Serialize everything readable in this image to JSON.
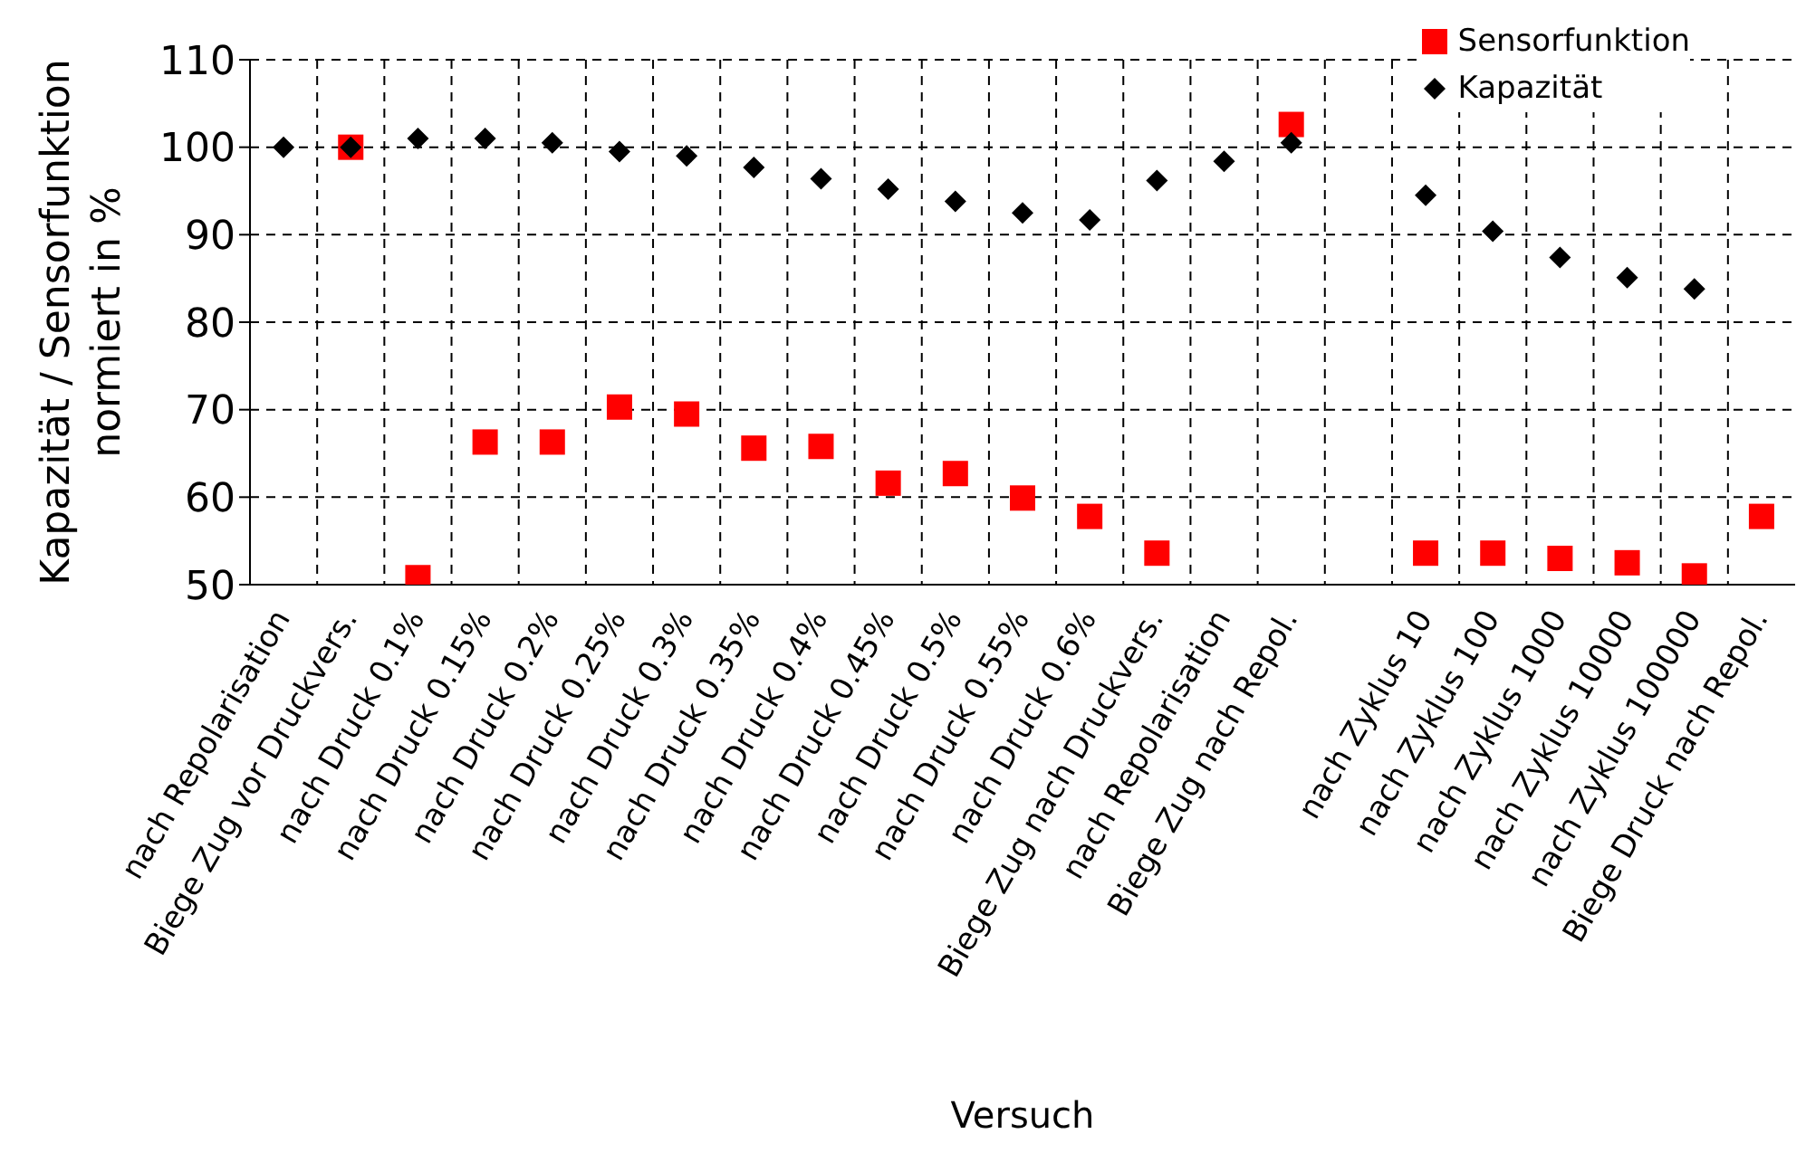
{
  "chart_data": {
    "type": "scatter",
    "xlabel": "Versuch",
    "ylabel": "Kapazität / Sensorfunktion\nnormiert in %",
    "categories": [
      "nach Repolarisation",
      "Biege Zug vor Druckvers.",
      "nach Druck 0.1%",
      "nach Druck 0.15%",
      "nach Druck 0.2%",
      "nach Druck 0.25%",
      "nach Druck 0.3%",
      "nach Druck 0.35%",
      "nach Druck 0.4%",
      "nach Druck 0.45%",
      "nach Druck 0.5%",
      "nach Druck 0.55%",
      "nach Druck 0.6%",
      "Biege Zug nach Druckvers.",
      "nach Repolarisation",
      "Biege Zug nach Repol.",
      null,
      "nach Zyklus 10",
      "nach Zyklus 100",
      "nach Zyklus 1000",
      "nach Zyklus 10000",
      "nach Zyklus 100000",
      "Biege Druck nach Repol."
    ],
    "series": [
      {
        "name": "Sensorfunktion",
        "color": "#ff0000",
        "marker": "square",
        "values": [
          null,
          100,
          50.8,
          66.3,
          66.3,
          70.3,
          69.5,
          65.6,
          65.8,
          61.6,
          62.7,
          59.9,
          57.8,
          53.6,
          null,
          102.6,
          null,
          53.6,
          53.6,
          53,
          52.5,
          51,
          57.8
        ]
      },
      {
        "name": "Kapazität",
        "color": "#000000",
        "marker": "diamond",
        "values": [
          100,
          100,
          101,
          101,
          100.5,
          99.5,
          99,
          97.7,
          96.4,
          95.2,
          93.8,
          92.5,
          91.7,
          96.2,
          98.4,
          100.5,
          null,
          94.5,
          90.4,
          87.4,
          85.1,
          83.8,
          null
        ]
      }
    ],
    "ylim": [
      50,
      110
    ],
    "yticks": [
      50,
      60,
      70,
      80,
      90,
      100,
      110
    ],
    "grid": true,
    "legend": "top right"
  }
}
